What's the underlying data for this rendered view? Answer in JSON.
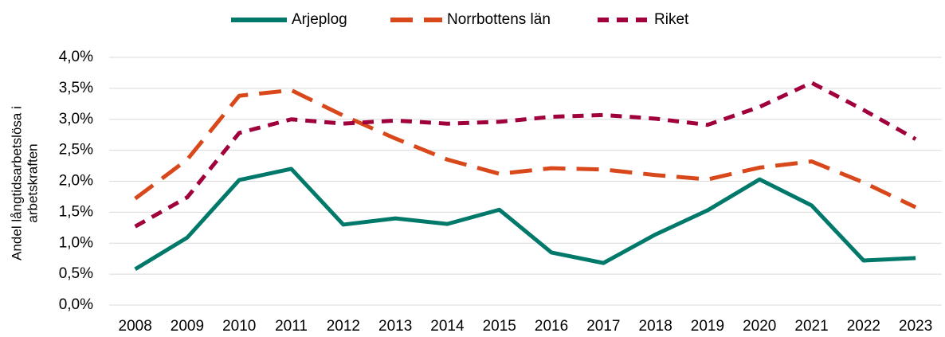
{
  "chart_data": {
    "type": "line",
    "y_label": [
      "Andel långtidsarbetslösa i",
      "arbetskraften"
    ],
    "categories": [
      "2008",
      "2009",
      "2010",
      "2011",
      "2012",
      "2013",
      "2014",
      "2015",
      "2016",
      "2017",
      "2018",
      "2019",
      "2020",
      "2021",
      "2022",
      "2023"
    ],
    "series": [
      {
        "name": "Arjeplog",
        "color": "#00796b",
        "dash": "solid",
        "values": [
          0.58,
          1.09,
          2.02,
          2.2,
          1.3,
          1.4,
          1.31,
          1.54,
          0.85,
          0.68,
          1.14,
          1.53,
          2.03,
          1.61,
          0.72,
          0.76
        ]
      },
      {
        "name": "Norrbottens län",
        "color": "#d9481a",
        "dash": "long",
        "values": [
          1.72,
          2.35,
          3.38,
          3.47,
          3.06,
          2.69,
          2.35,
          2.12,
          2.21,
          2.19,
          2.1,
          2.03,
          2.22,
          2.32,
          1.98,
          1.58
        ]
      },
      {
        "name": "Riket",
        "color": "#a0003c",
        "dash": "short",
        "values": [
          1.27,
          1.74,
          2.78,
          3.0,
          2.93,
          2.98,
          2.93,
          2.96,
          3.04,
          3.07,
          3.01,
          2.91,
          3.2,
          3.59,
          3.15,
          2.68
        ]
      }
    ],
    "ylim": [
      0,
      4
    ],
    "yticks": [
      {
        "value": 0,
        "label": "0,0%"
      },
      {
        "value": 0.5,
        "label": "0,5%"
      },
      {
        "value": 1,
        "label": "1,0%"
      },
      {
        "value": 1.5,
        "label": "1,5%"
      },
      {
        "value": 2,
        "label": "2,0%"
      },
      {
        "value": 2.5,
        "label": "2,5%"
      },
      {
        "value": 3,
        "label": "3,0%"
      },
      {
        "value": 3.5,
        "label": "3,5%"
      },
      {
        "value": 4,
        "label": "4,0%"
      }
    ],
    "grid": true,
    "legend": "top"
  }
}
